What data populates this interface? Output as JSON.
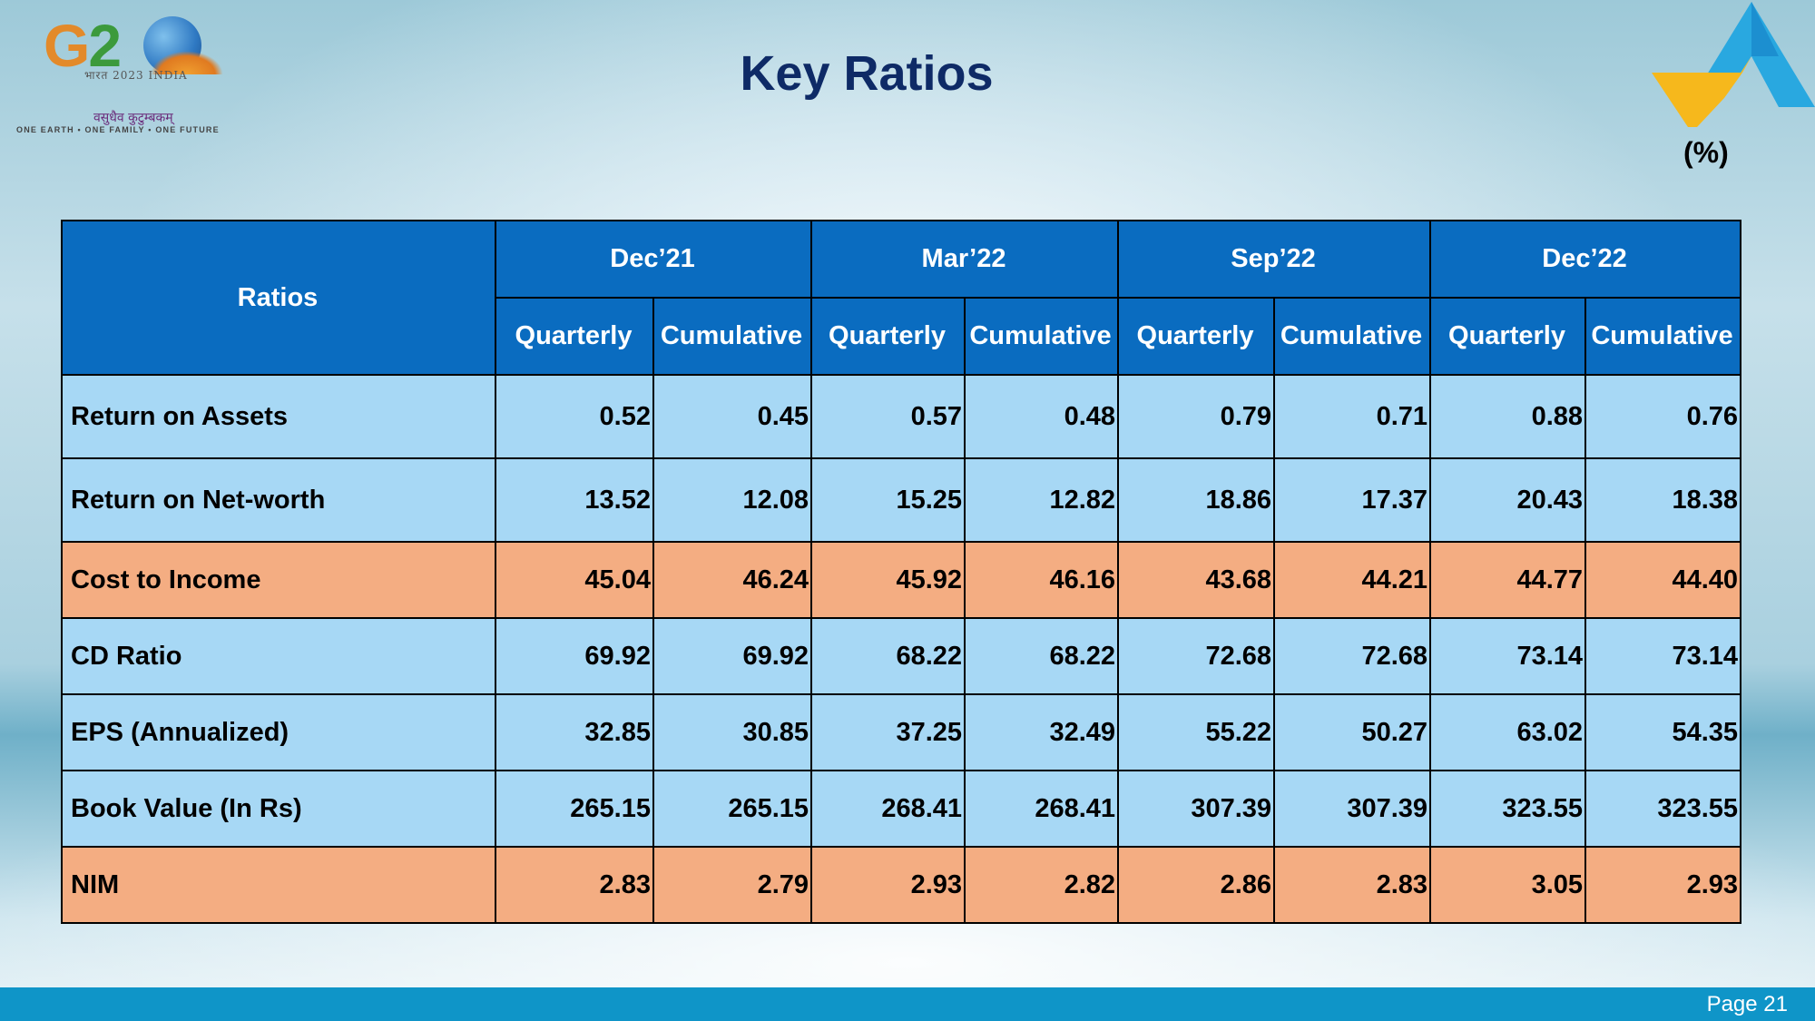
{
  "logo": {
    "g20_mark": "G20",
    "g20_subtitle": "भारत 2023 INDIA",
    "g20_motto": "वसुधैव कुटुम्बकम्",
    "g20_tagline": "ONE EARTH • ONE FAMILY • ONE FUTURE"
  },
  "title": "Key Ratios",
  "unit": "(%)",
  "table": {
    "ratios_header": "Ratios",
    "periods": [
      "Dec’21",
      "Mar’22",
      "Sep’22",
      "Dec’22"
    ],
    "sub_headers": [
      "Quarterly",
      "Cumulative",
      "Quarterly",
      "Cumulative",
      "Quarterly",
      "Cumulative",
      "Quarterly",
      "Cumulative"
    ],
    "rows": [
      {
        "name": "Return on Assets",
        "values": [
          "0.52",
          "0.45",
          "0.57",
          "0.48",
          "0.79",
          "0.71",
          "0.88",
          "0.76"
        ]
      },
      {
        "name": "Return on Net-worth",
        "values": [
          "13.52",
          "12.08",
          "15.25",
          "12.82",
          "18.86",
          "17.37",
          "20.43",
          "18.38"
        ]
      },
      {
        "name": "Cost to Income",
        "values": [
          "45.04",
          "46.24",
          "45.92",
          "46.16",
          "43.68",
          "44.21",
          "44.77",
          "44.40"
        ]
      },
      {
        "name": "CD Ratio",
        "values": [
          "69.92",
          "69.92",
          "68.22",
          "68.22",
          "72.68",
          "72.68",
          "73.14",
          "73.14"
        ]
      },
      {
        "name": "EPS (Annualized)",
        "values": [
          "32.85",
          "30.85",
          "37.25",
          "32.49",
          "55.22",
          "50.27",
          "63.02",
          "54.35"
        ]
      },
      {
        "name": "Book Value (In Rs)",
        "values": [
          "265.15",
          "265.15",
          "268.41",
          "268.41",
          "307.39",
          "307.39",
          "323.55",
          "323.55"
        ]
      },
      {
        "name": "NIM",
        "values": [
          "2.83",
          "2.79",
          "2.93",
          "2.82",
          "2.86",
          "2.83",
          "3.05",
          "2.93"
        ]
      }
    ]
  },
  "colors": {
    "header_blue": "#0a6cc0",
    "row_blue": "#a7d8f5",
    "row_orange": "#f4ad82",
    "title_navy": "#0e2a66",
    "footer_blue": "#0f95c8"
  },
  "footer": {
    "page_label": "Page 21"
  }
}
